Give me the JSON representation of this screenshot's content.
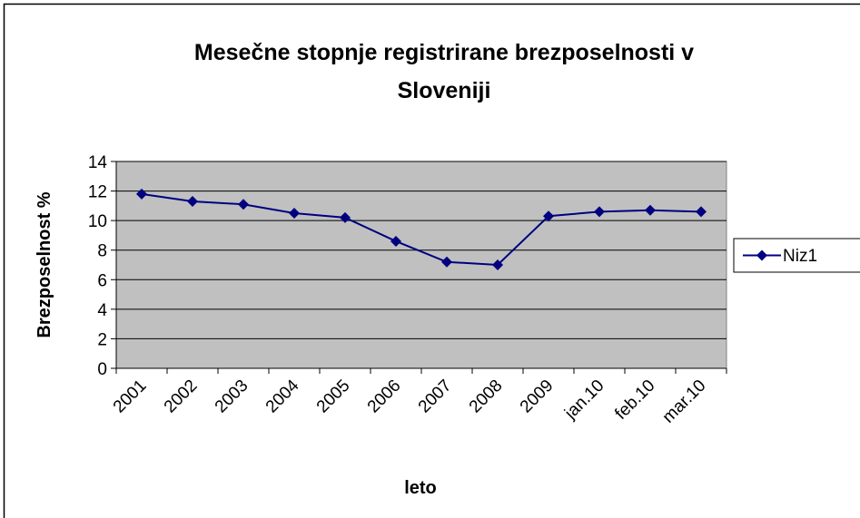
{
  "chart_data": {
    "type": "line",
    "title": "Mesečne stopnje registrirane brezposelnosti v",
    "title_line2": "Sloveniji",
    "y_label": "Brezposelnost %",
    "x_label": "leto",
    "categories": [
      "2001",
      "2002",
      "2003",
      "2004",
      "2005",
      "2006",
      "2007",
      "2008",
      "2009",
      "jan.10",
      "feb.10",
      "mar.10"
    ],
    "series": [
      {
        "name": "Niz1",
        "color": "#000080",
        "values": [
          11.8,
          11.3,
          11.1,
          10.5,
          10.2,
          8.6,
          7.2,
          7.0,
          10.3,
          10.6,
          10.7,
          10.6
        ]
      }
    ],
    "ylim": [
      0,
      14
    ],
    "yticks": [
      0,
      2,
      4,
      6,
      8,
      10,
      12,
      14
    ],
    "grid": true,
    "legend": "right",
    "plot_background": "#c0c0c0"
  }
}
